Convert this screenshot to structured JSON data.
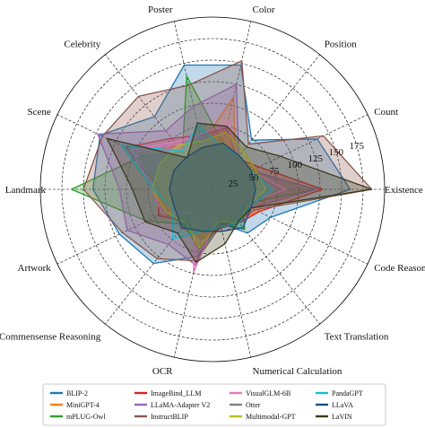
{
  "chart_data": {
    "type": "radar",
    "axes": [
      "Existence",
      "Count",
      "Position",
      "Color",
      "Poster",
      "Celebrity",
      "Scene",
      "Landmark",
      "Artwork",
      "Commensense Reasoning",
      "OCR",
      "Numerical Calculation",
      "Text Translation",
      "Code Reasoning"
    ],
    "rlim": [
      0,
      200
    ],
    "radial_ticks": [
      25,
      50,
      75,
      100,
      125,
      150,
      175
    ],
    "grid": true,
    "legend": "bottom",
    "series": [
      {
        "name": "BLIP-2",
        "color": "#1f77b4",
        "values": [
          160,
          135,
          73,
          148,
          148,
          108,
          145,
          139,
          120,
          110,
          80,
          40,
          65,
          75
        ]
      },
      {
        "name": "MiniGPT-4",
        "color": "#ff7f0e",
        "values": [
          68,
          55,
          43,
          110,
          55,
          65,
          96,
          60,
          55,
          58,
          57,
          45,
          45,
          60
        ]
      },
      {
        "name": "mPLUG-Owl",
        "color": "#2ca02c",
        "values": [
          120,
          50,
          50,
          55,
          135,
          56,
          90,
          164,
          85,
          52,
          72,
          40,
          60,
          40
        ]
      },
      {
        "name": "ImageBind_LLM",
        "color": "#d62728",
        "values": [
          128,
          60,
          46,
          73,
          64,
          76,
          112,
          62,
          70,
          48,
          60,
          46,
          50,
          60
        ]
      },
      {
        "name": "LLaMA-Adapter V2",
        "color": "#9467bd",
        "values": [
          120,
          50,
          49,
          125,
          99,
          87,
          148,
          108,
          110,
          82,
          90,
          30,
          40,
          50
        ]
      },
      {
        "name": "InstructBLIP",
        "color": "#8c564b",
        "values": [
          185,
          143,
          67,
          153,
          124,
          138,
          142,
          150,
          116,
          103,
          85,
          43,
          45,
          55
        ]
      },
      {
        "name": "VisualGLM-6B",
        "color": "#e377c2",
        "values": [
          85,
          50,
          48,
          80,
          65,
          70,
          105,
          70,
          65,
          35,
          99,
          30,
          45,
          40
        ]
      },
      {
        "name": "Otter",
        "color": "#7f7f7f",
        "values": [
          80,
          45,
          48,
          55,
          44,
          50,
          92,
          64,
          60,
          50,
          60,
          30,
          45,
          40
        ]
      },
      {
        "name": "Multimodal-GPT",
        "color": "#bcbd22",
        "values": [
          62,
          55,
          58,
          68,
          57,
          65,
          68,
          70,
          60,
          50,
          70,
          38,
          50,
          45
        ]
      },
      {
        "name": "PandaGPT",
        "color": "#17becf",
        "values": [
          70,
          50,
          50,
          50,
          76,
          57,
          118,
          69,
          51,
          74,
          50,
          45,
          50,
          48
        ]
      },
      {
        "name": "LLaVA",
        "color": "#1a4f8a",
        "values": [
          50,
          50,
          50,
          55,
          50,
          48,
          50,
          50,
          49,
          57,
          50,
          50,
          57,
          50
        ]
      },
      {
        "name": "LaVIN",
        "color": "#3a3a1a",
        "values": [
          185,
          88,
          63,
          75,
          79,
          47,
          136,
          93,
          87,
          65,
          87,
          65,
          48,
          50
        ]
      }
    ]
  }
}
